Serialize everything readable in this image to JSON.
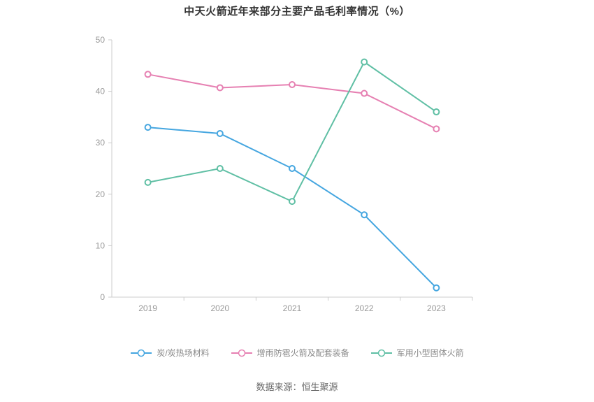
{
  "title": "中天火箭近年来部分主要产品毛利率情况（%）",
  "source": "数据来源：恒生聚源",
  "chart_data": {
    "type": "line",
    "title": "中天火箭近年来部分主要产品毛利率情况（%）",
    "categories": [
      "2019",
      "2020",
      "2021",
      "2022",
      "2023"
    ],
    "series": [
      {
        "name": "炭/炭热场材料",
        "color": "#45a6e0",
        "values": [
          33,
          31.8,
          25,
          16,
          1.8
        ]
      },
      {
        "name": "增雨防雹火箭及配套装备",
        "color": "#e680b2",
        "values": [
          43.3,
          40.7,
          41.3,
          39.6,
          32.7
        ]
      },
      {
        "name": "军用小型固体火箭",
        "color": "#5fbfa4",
        "values": [
          22.3,
          25,
          18.6,
          45.7,
          36
        ]
      }
    ],
    "xlabel": "",
    "ylabel": "",
    "ylim": [
      0,
      50
    ],
    "yticks": [
      0,
      10,
      20,
      30,
      40,
      50
    ],
    "grid": false,
    "legend_position": "bottom",
    "marker": "hollow-circle"
  }
}
